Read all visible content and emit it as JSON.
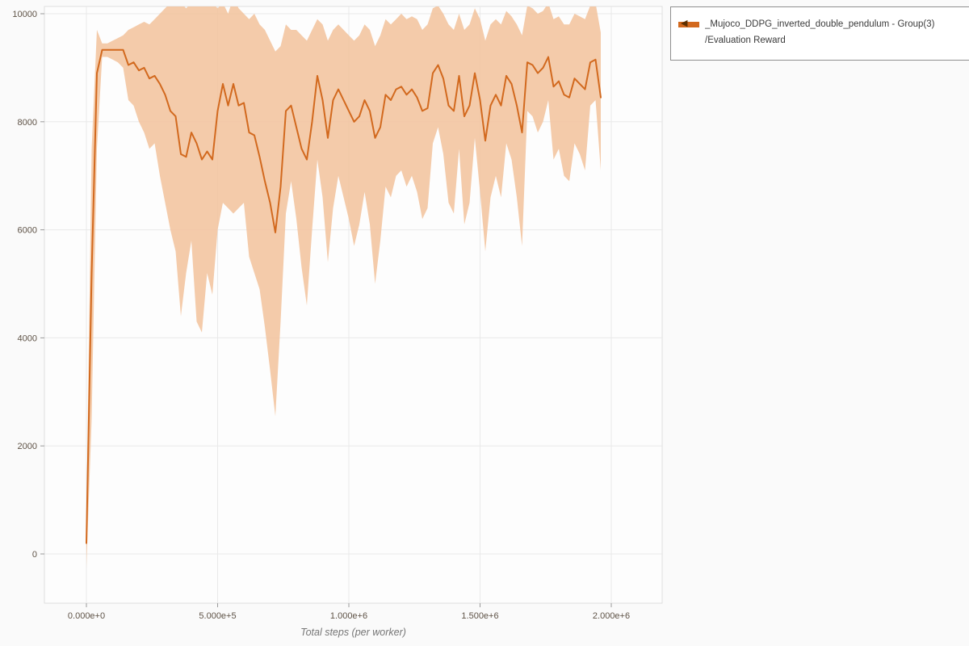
{
  "colors": {
    "accent": "#d2691e",
    "band": "#f2c29b",
    "grid": "#e9e9e9",
    "plot_bg": "#fdfdfd",
    "plot_border": "#dedede",
    "tick_mark": "#9a9a9a",
    "tick_text": "#5f5347",
    "axis_title": "#767676",
    "background": "#fafafa",
    "legend_border": "#8f8f8f",
    "legend_toggle": "#5d2f00"
  },
  "legend": {
    "toggle_icon": "◀",
    "series_label": "_Mujoco_DDPG_inverted_double_pendulum - Group(3)",
    "sublabel": "/Evaluation Reward"
  },
  "chart_data": {
    "type": "line",
    "title": "",
    "xlabel": "Total steps (per worker)",
    "ylabel": "",
    "grid": true,
    "legend_position": "top-right",
    "xlim": [
      -160000,
      2193850
    ],
    "ylim": [
      -912,
      10134
    ],
    "x_ticks": {
      "values": [
        0,
        500000,
        1000000,
        1500000,
        2000000
      ],
      "labels": [
        "0.000e+0",
        "5.000e+5",
        "1.000e+6",
        "1.500e+6",
        "2.000e+6"
      ]
    },
    "y_ticks": {
      "values": [
        0,
        2000,
        4000,
        6000,
        8000,
        10000
      ],
      "labels": [
        "0",
        "2000",
        "4000",
        "6000",
        "8000",
        "10000"
      ]
    },
    "series": [
      {
        "name": "_Mujoco_DDPG_inverted_double_pendulum - Group(3) /Evaluation Reward",
        "color": "#d2691e",
        "band_color": "#f2c29b",
        "x": [
          0,
          20000,
          40000,
          60000,
          80000,
          100000,
          120000,
          140000,
          160000,
          180000,
          200000,
          220000,
          240000,
          260000,
          280000,
          300000,
          320000,
          340000,
          360000,
          380000,
          400000,
          420000,
          440000,
          460000,
          480000,
          500000,
          520000,
          540000,
          560000,
          580000,
          600000,
          620000,
          640000,
          660000,
          680000,
          700000,
          720000,
          740000,
          760000,
          780000,
          800000,
          820000,
          840000,
          860000,
          880000,
          900000,
          920000,
          940000,
          960000,
          980000,
          1000000,
          1020000,
          1040000,
          1060000,
          1080000,
          1100000,
          1120000,
          1140000,
          1160000,
          1180000,
          1200000,
          1220000,
          1240000,
          1260000,
          1280000,
          1300000,
          1320000,
          1340000,
          1360000,
          1380000,
          1400000,
          1420000,
          1440000,
          1460000,
          1480000,
          1500000,
          1520000,
          1540000,
          1560000,
          1580000,
          1600000,
          1620000,
          1640000,
          1660000,
          1680000,
          1700000,
          1720000,
          1740000,
          1760000,
          1780000,
          1800000,
          1820000,
          1840000,
          1860000,
          1880000,
          1900000,
          1920000,
          1940000,
          1960000
        ],
        "mean": [
          200,
          5200,
          8900,
          9330,
          9330,
          9330,
          9330,
          9330,
          9050,
          9100,
          8950,
          9000,
          8800,
          8850,
          8700,
          8500,
          8200,
          8100,
          7400,
          7350,
          7800,
          7600,
          7300,
          7450,
          7300,
          8200,
          8700,
          8300,
          8700,
          8300,
          8350,
          7800,
          7750,
          7350,
          6900,
          6500,
          5950,
          6800,
          8200,
          8300,
          7900,
          7500,
          7300,
          8000,
          8850,
          8400,
          7700,
          8400,
          8600,
          8400,
          8200,
          8000,
          8100,
          8400,
          8200,
          7700,
          7900,
          8500,
          8400,
          8600,
          8650,
          8500,
          8600,
          8450,
          8200,
          8250,
          8900,
          9050,
          8800,
          8300,
          8200,
          8850,
          8100,
          8300,
          8900,
          8400,
          7650,
          8300,
          8500,
          8300,
          8850,
          8700,
          8300,
          7800,
          9100,
          9050,
          8900,
          9000,
          9200,
          8650,
          8750,
          8500,
          8450,
          8800,
          8700,
          8600,
          9100,
          9150,
          8450
        ],
        "lower": [
          -250,
          2500,
          7500,
          9200,
          9200,
          9150,
          9100,
          9000,
          8400,
          8300,
          8000,
          7800,
          7500,
          7600,
          7000,
          6500,
          6000,
          5600,
          4400,
          5200,
          5800,
          4300,
          4100,
          5200,
          4800,
          6000,
          6500,
          6400,
          6300,
          6400,
          6500,
          5500,
          5200,
          4900,
          4200,
          3400,
          2550,
          4300,
          6300,
          6900,
          6200,
          5300,
          4600,
          6000,
          7300,
          6600,
          5400,
          6400,
          7000,
          6600,
          6200,
          5700,
          6100,
          6700,
          6100,
          5000,
          5800,
          6800,
          6600,
          7000,
          7100,
          6800,
          7000,
          6700,
          6200,
          6400,
          7600,
          7900,
          7400,
          6500,
          6300,
          7500,
          6100,
          6500,
          7700,
          6700,
          5600,
          6600,
          7000,
          6600,
          7600,
          7300,
          6600,
          5700,
          8200,
          8100,
          7800,
          8000,
          8400,
          7300,
          7500,
          7000,
          6900,
          7600,
          7400,
          7100,
          8300,
          8400,
          7100
        ],
        "upper": [
          700,
          7500,
          9700,
          9450,
          9450,
          9500,
          9550,
          9600,
          9700,
          9750,
          9800,
          9850,
          9800,
          9900,
          10000,
          10100,
          10200,
          10300,
          10200,
          10100,
          10200,
          10300,
          10250,
          10300,
          10200,
          10100,
          10200,
          10000,
          10300,
          10100,
          10000,
          9900,
          10000,
          9800,
          9700,
          9500,
          9300,
          9400,
          9800,
          9700,
          9700,
          9600,
          9500,
          9700,
          9900,
          9800,
          9500,
          9700,
          9800,
          9700,
          9600,
          9500,
          9600,
          9800,
          9700,
          9400,
          9600,
          9900,
          9800,
          9900,
          10000,
          9900,
          9950,
          9900,
          9700,
          9800,
          10100,
          10150,
          10000,
          9800,
          9700,
          10000,
          9700,
          9800,
          10100,
          9900,
          9500,
          9800,
          9900,
          9800,
          10050,
          9950,
          9800,
          9600,
          10150,
          10100,
          10000,
          10050,
          10200,
          9900,
          9950,
          9800,
          9800,
          10000,
          9950,
          9900,
          10150,
          10200,
          9650
        ]
      }
    ]
  }
}
